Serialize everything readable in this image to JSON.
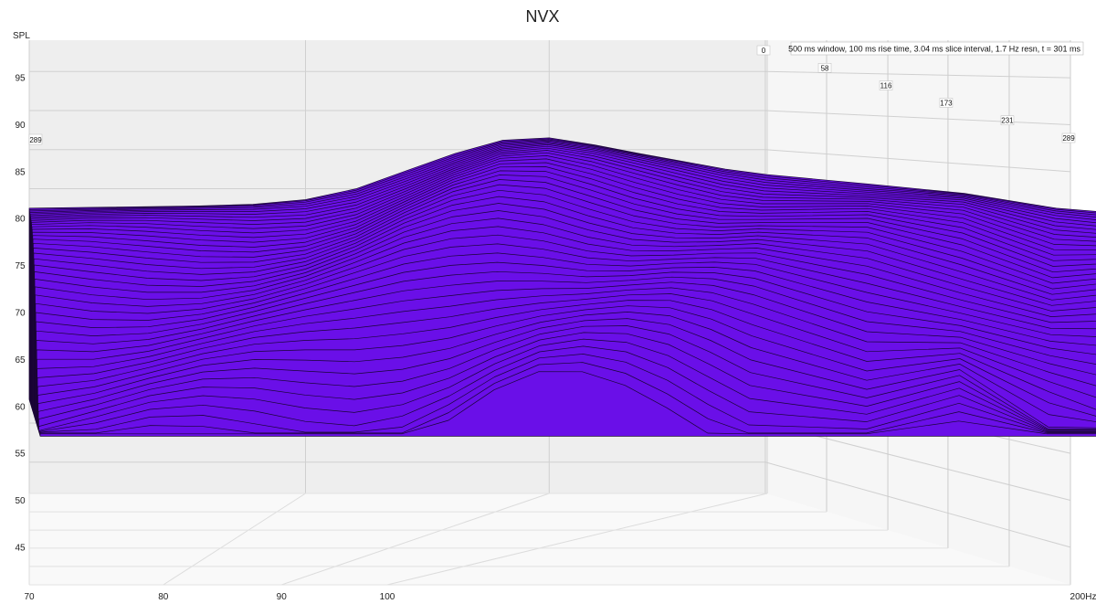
{
  "chart_data": {
    "type": "waterfall-3d",
    "title": "NVX",
    "ylabel": "SPL",
    "xunit": "Hz",
    "annotation": "500 ms window, 100 ms rise time, 3.04 ms slice interval, 1.7 Hz resn, t = 301 ms",
    "x_ticks": [
      "70",
      "80",
      "90",
      "100"
    ],
    "x_end_label": "200",
    "y_ticks": [
      "45",
      "50",
      "55",
      "60",
      "65",
      "70",
      "75",
      "80",
      "85",
      "90",
      "95"
    ],
    "ylim": [
      41,
      99
    ],
    "time_ticks": [
      "0",
      "58",
      "116",
      "173",
      "231",
      "289"
    ],
    "time_range_ms": [
      0,
      289
    ],
    "floor_spl": 53,
    "fill_color": "#6a0fe8",
    "line_color": "#1a0535",
    "freqs": [
      70,
      72,
      74,
      76,
      78,
      80,
      82,
      84,
      86,
      88,
      90,
      92,
      94,
      96,
      98,
      100,
      105,
      110,
      115,
      120,
      125,
      130,
      140,
      150,
      160,
      170,
      185,
      200
    ],
    "front_slice_spl": [
      77.5,
      77.6,
      77.7,
      77.8,
      78,
      78.6,
      80,
      82.3,
      84.5,
      86.2,
      86.5,
      85.6,
      84.5,
      83.5,
      82.5,
      81.8,
      80.6,
      79.4,
      77.5,
      76.6,
      75.2,
      74,
      72.3,
      70.5,
      69.8,
      70.5,
      70,
      57
    ],
    "slice_count": 45
  }
}
